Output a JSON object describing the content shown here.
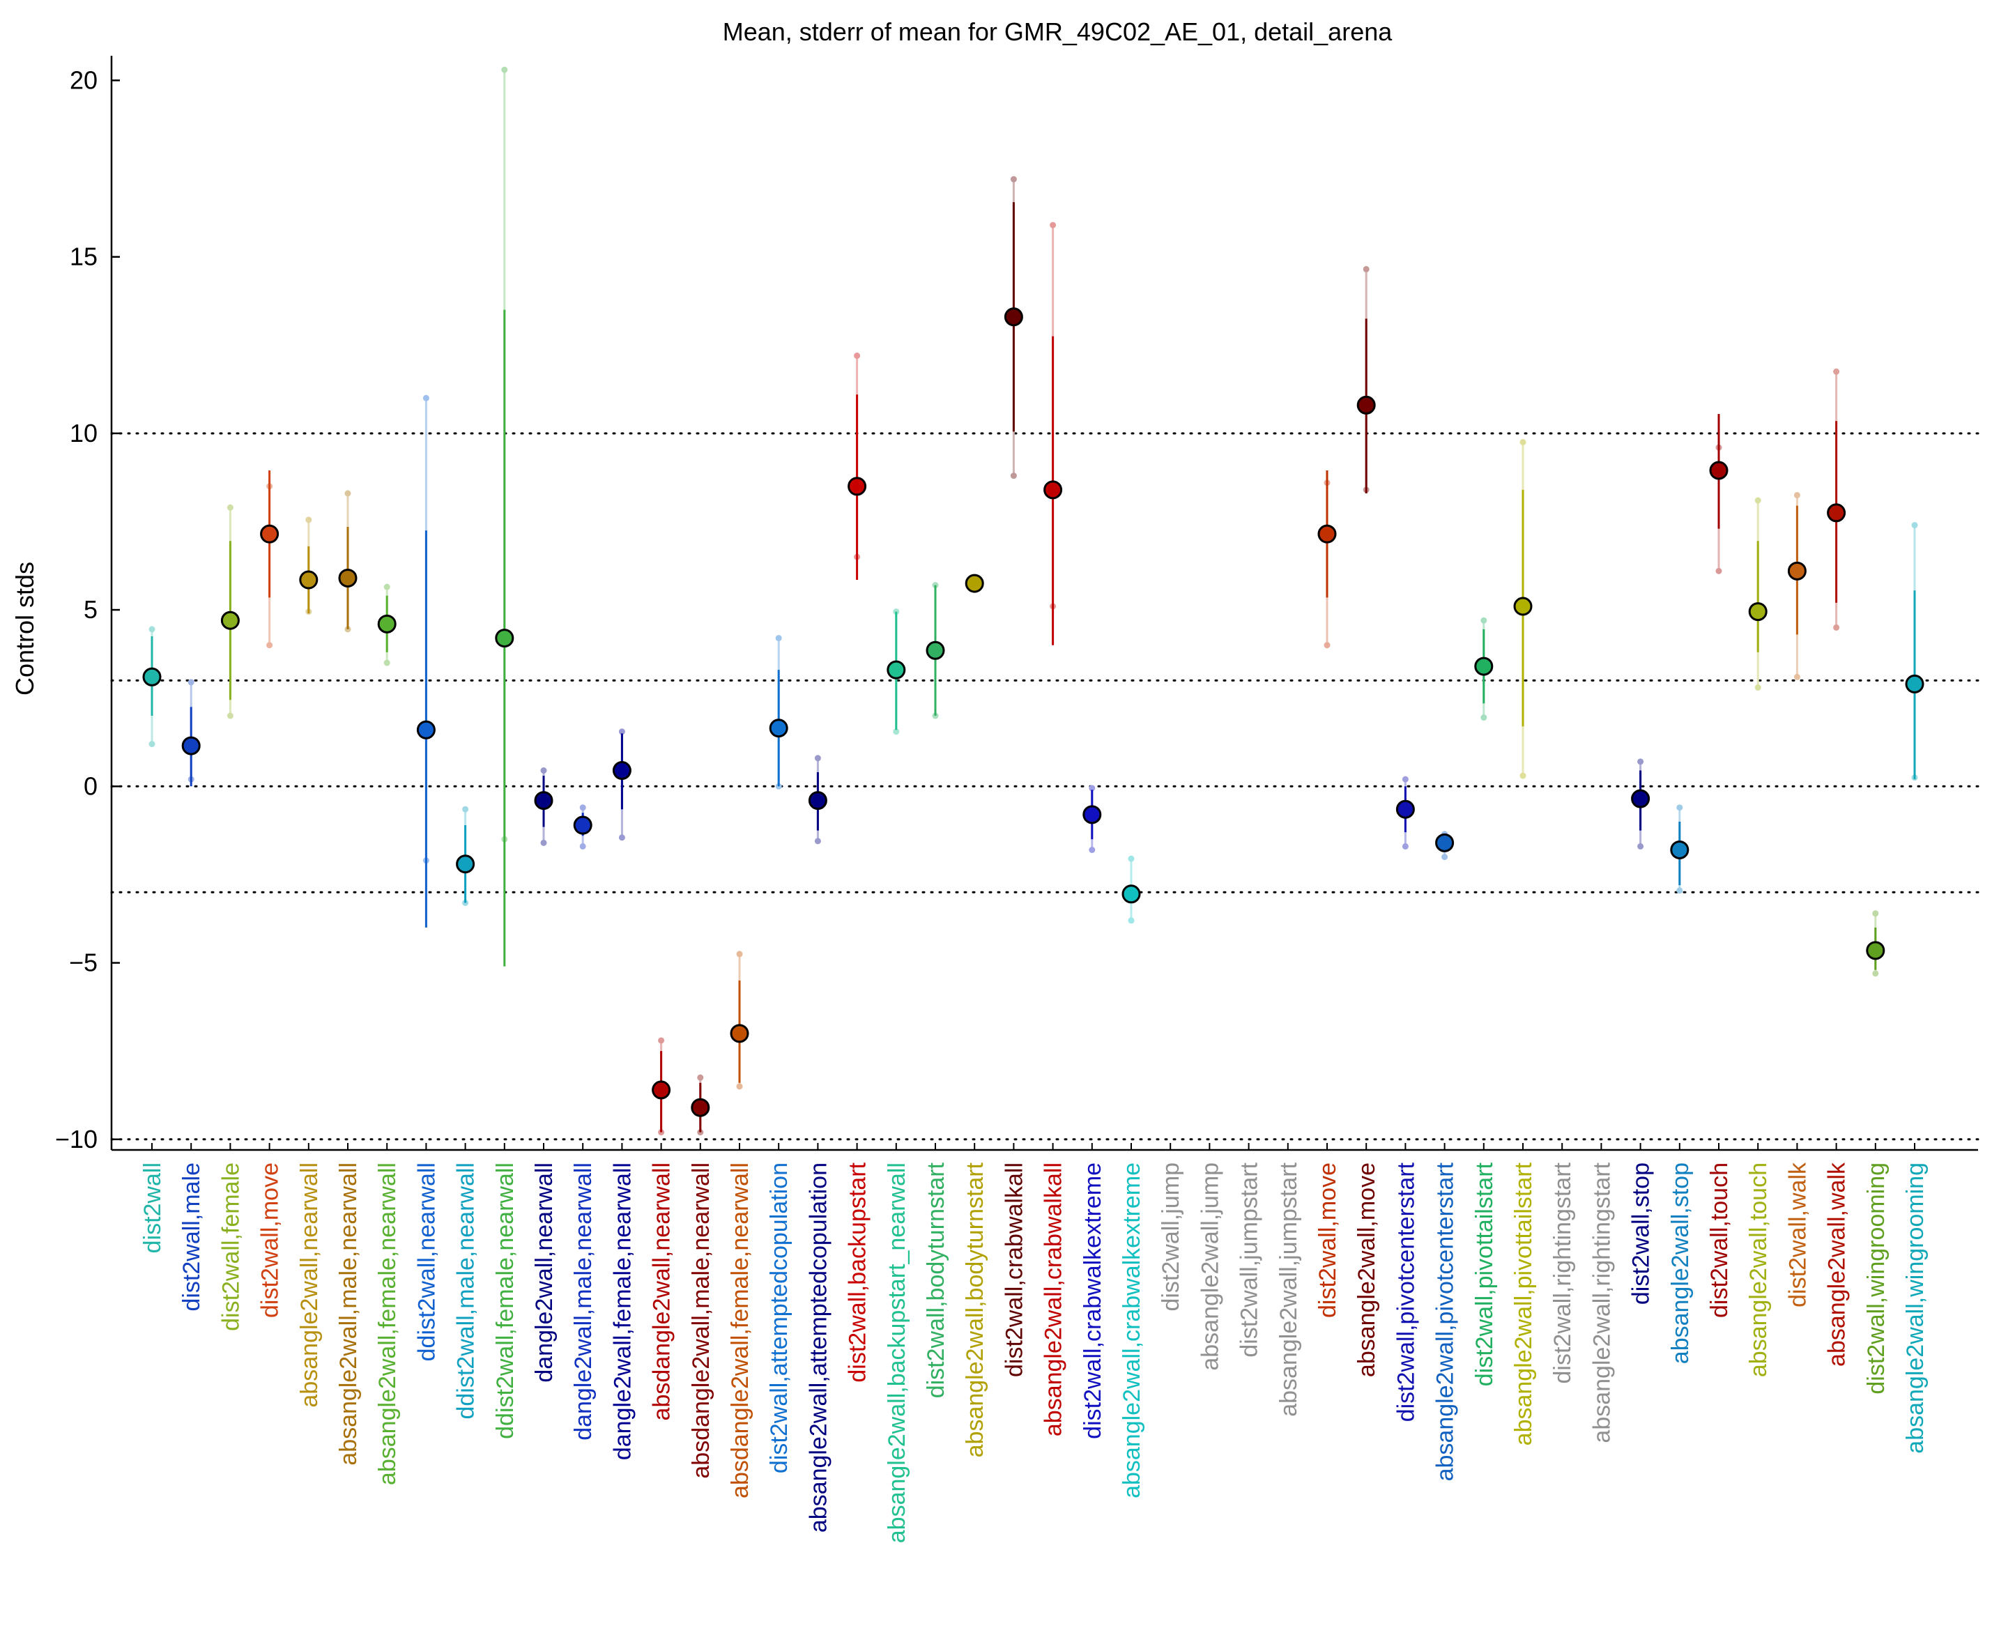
{
  "chart_data": {
    "type": "scatter",
    "title": "Mean, stderr of mean for GMR_49C02_AE_01, detail_arena",
    "xlabel": "",
    "ylabel": "Control stds",
    "ylim": [
      -10.3,
      20.5
    ],
    "yticks": [
      -10,
      -5,
      0,
      5,
      10,
      15,
      20
    ],
    "reference_lines": [
      -10,
      -3,
      0,
      3,
      10
    ],
    "grid": false,
    "legend": "none",
    "categories": [
      "dist2wall",
      "dist2wall,male",
      "dist2wall,female",
      "dist2wall,move",
      "absangle2wall,nearwall",
      "absangle2wall,male,nearwall",
      "absangle2wall,female,nearwall",
      "ddist2wall,nearwall",
      "ddist2wall,male,nearwall",
      "ddist2wall,female,nearwall",
      "dangle2wall,nearwall",
      "dangle2wall,male,nearwall",
      "dangle2wall,female,nearwall",
      "absdangle2wall,nearwall",
      "absdangle2wall,male,nearwall",
      "absdangle2wall,female,nearwall",
      "dist2wall,attemptedcopulation",
      "absangle2wall,attemptedcopulation",
      "dist2wall,backupstart",
      "absangle2wall,backupstart_nearwall",
      "dist2wall,bodyturnstart",
      "absangle2wall,bodyturnstart",
      "dist2wall,crabwalkall",
      "absangle2wall,crabwalkall",
      "dist2wall,crabwalkextreme",
      "absangle2wall,crabwalkextreme",
      "dist2wall,jump",
      "absangle2wall,jump",
      "dist2wall,jumpstart",
      "absangle2wall,jumpstart",
      "dist2wall,move",
      "absangle2wall,move",
      "dist2wall,pivotcenterstart",
      "absangle2wall,pivotcenterstart",
      "dist2wall,pivottailstart",
      "absangle2wall,pivottailstart",
      "dist2wall,rightingstart",
      "absangle2wall,rightingstart",
      "dist2wall,stop",
      "absangle2wall,stop",
      "dist2wall,touch",
      "absangle2wall,touch",
      "dist2wall,walk",
      "absangle2wall,walk",
      "dist2wall,wingrooming",
      "absangle2wall,wingrooming"
    ],
    "colors": [
      "#1fb5a8",
      "#1040c0",
      "#8ab020",
      "#d04010",
      "#b89010",
      "#a87008",
      "#58b030",
      "#1060d0",
      "#10a0c0",
      "#40b040",
      "#000080",
      "#1030c0",
      "#000090",
      "#b00000",
      "#800000",
      "#c05000",
      "#1070d0",
      "#000080",
      "#c80000",
      "#20c090",
      "#30b060",
      "#b0a000",
      "#600000",
      "#c00000",
      "#1010c0",
      "#10c0c0",
      "#909090",
      "#909090",
      "#909090",
      "#909090",
      "#c03000",
      "#700000",
      "#1010b0",
      "#1060c0",
      "#20b060",
      "#b0b000",
      "#909090",
      "#909090",
      "#000080",
      "#1080c0",
      "#a00000",
      "#a0b010",
      "#c06010",
      "#b01000",
      "#60a020",
      "#10a8b8"
    ],
    "mean": [
      3.1,
      1.15,
      4.7,
      7.15,
      5.85,
      5.9,
      4.6,
      1.6,
      -2.2,
      4.2,
      -0.4,
      -1.1,
      0.45,
      -8.6,
      -9.1,
      -7.0,
      1.65,
      -0.4,
      8.5,
      3.3,
      3.85,
      5.75,
      13.3,
      8.4,
      -0.8,
      -3.05,
      null,
      null,
      null,
      null,
      7.15,
      10.8,
      -0.65,
      -1.6,
      3.4,
      5.1,
      null,
      null,
      -0.35,
      -1.8,
      8.95,
      4.95,
      6.1,
      7.75,
      -4.65,
      2.9
    ],
    "sem_low": [
      2.0,
      0.0,
      2.45,
      5.35,
      4.9,
      4.45,
      3.8,
      -4.0,
      -3.3,
      -5.1,
      -1.15,
      -1.4,
      -0.65,
      -9.8,
      -9.8,
      -8.4,
      0.0,
      -1.25,
      5.85,
      1.6,
      2.0,
      5.75,
      10.05,
      4.0,
      -1.5,
      -3.2,
      null,
      null,
      null,
      null,
      5.35,
      8.3,
      -1.3,
      -1.75,
      2.35,
      1.7,
      null,
      null,
      -1.25,
      -2.8,
      7.3,
      3.8,
      4.3,
      5.2,
      -5.2,
      0.2
    ],
    "sem_high": [
      4.25,
      2.25,
      6.95,
      8.95,
      6.8,
      7.35,
      5.4,
      7.25,
      -1.1,
      13.5,
      0.3,
      -0.75,
      1.5,
      -7.5,
      -8.4,
      -5.5,
      3.3,
      0.4,
      11.1,
      4.95,
      5.7,
      5.75,
      16.55,
      12.75,
      -0.1,
      -2.9,
      null,
      null,
      null,
      null,
      8.95,
      13.25,
      0.0,
      -1.45,
      4.45,
      8.4,
      null,
      null,
      0.45,
      -1.0,
      10.55,
      6.95,
      7.95,
      10.35,
      -4.0,
      5.55
    ],
    "range_low": [
      1.2,
      0.2,
      2.0,
      4.0,
      4.95,
      4.45,
      3.5,
      -2.1,
      -3.3,
      -1.5,
      -1.6,
      -1.7,
      -1.45,
      -9.8,
      -9.8,
      -8.5,
      0.0,
      -1.55,
      6.5,
      1.55,
      2.0,
      5.75,
      8.8,
      5.1,
      -1.8,
      -3.8,
      null,
      null,
      null,
      null,
      4.0,
      8.4,
      -1.7,
      -2.0,
      1.95,
      0.3,
      null,
      null,
      -1.7,
      -2.95,
      6.1,
      2.8,
      3.1,
      4.5,
      -5.3,
      0.25
    ],
    "range_high": [
      4.45,
      2.95,
      7.9,
      8.5,
      7.55,
      8.3,
      5.65,
      11.0,
      -0.65,
      20.3,
      0.45,
      -0.6,
      1.55,
      -7.2,
      -8.25,
      -4.75,
      4.2,
      0.8,
      12.2,
      4.95,
      5.7,
      5.75,
      17.2,
      15.9,
      -0.05,
      -2.05,
      null,
      null,
      null,
      null,
      8.6,
      14.65,
      0.2,
      -1.35,
      4.7,
      9.75,
      null,
      null,
      0.7,
      -0.6,
      9.6,
      8.1,
      8.25,
      11.75,
      -3.6,
      7.4
    ]
  }
}
